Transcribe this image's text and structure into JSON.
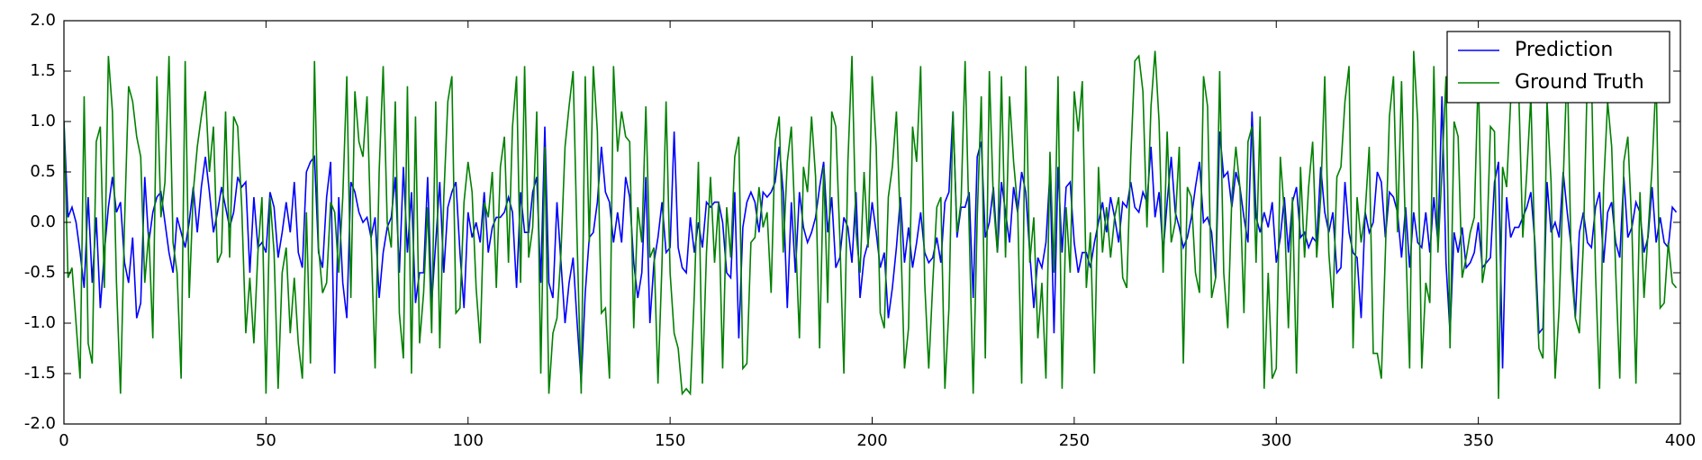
{
  "chart_data": {
    "type": "line",
    "x": [
      0,
      1,
      2,
      3,
      4,
      5,
      6,
      7,
      8,
      9,
      10,
      11,
      12,
      13,
      14,
      15,
      16,
      17,
      18,
      19,
      20,
      21,
      22,
      23,
      24,
      25,
      26,
      27,
      28,
      29,
      30,
      31,
      32,
      33,
      34,
      35,
      36,
      37,
      38,
      39,
      40,
      41,
      42,
      43,
      44,
      45,
      46,
      47,
      48,
      49,
      50,
      51,
      52,
      53,
      54,
      55,
      56,
      57,
      58,
      59,
      60,
      61,
      62,
      63,
      64,
      65,
      66,
      67,
      68,
      69,
      70,
      71,
      72,
      73,
      74,
      75,
      76,
      77,
      78,
      79,
      80,
      81,
      82,
      83,
      84,
      85,
      86,
      87,
      88,
      89,
      90,
      91,
      92,
      93,
      94,
      95,
      96,
      97,
      98,
      99,
      100,
      101,
      102,
      103,
      104,
      105,
      106,
      107,
      108,
      109,
      110,
      111,
      112,
      113,
      114,
      115,
      116,
      117,
      118,
      119,
      120,
      121,
      122,
      123,
      124,
      125,
      126,
      127,
      128,
      129,
      130,
      131,
      132,
      133,
      134,
      135,
      136,
      137,
      138,
      139,
      140,
      141,
      142,
      143,
      144,
      145,
      146,
      147,
      148,
      149,
      150,
      151,
      152,
      153,
      154,
      155,
      156,
      157,
      158,
      159,
      160,
      161,
      162,
      163,
      164,
      165,
      166,
      167,
      168,
      169,
      170,
      171,
      172,
      173,
      174,
      175,
      176,
      177,
      178,
      179,
      180,
      181,
      182,
      183,
      184,
      185,
      186,
      187,
      188,
      189,
      190,
      191,
      192,
      193,
      194,
      195,
      196,
      197,
      198,
      199,
      200,
      201,
      202,
      203,
      204,
      205,
      206,
      207,
      208,
      209,
      210,
      211,
      212,
      213,
      214,
      215,
      216,
      217,
      218,
      219,
      220,
      221,
      222,
      223,
      224,
      225,
      226,
      227,
      228,
      229,
      230,
      231,
      232,
      233,
      234,
      235,
      236,
      237,
      238,
      239,
      240,
      241,
      242,
      243,
      244,
      245,
      246,
      247,
      248,
      249,
      250,
      251,
      252,
      253,
      254,
      255,
      256,
      257,
      258,
      259,
      260,
      261,
      262,
      263,
      264,
      265,
      266,
      267,
      268,
      269,
      270,
      271,
      272,
      273,
      274,
      275,
      276,
      277,
      278,
      279,
      280,
      281,
      282,
      283,
      284,
      285,
      286,
      287,
      288,
      289,
      290,
      291,
      292,
      293,
      294,
      295,
      296,
      297,
      298,
      299,
      300,
      301,
      302,
      303,
      304,
      305,
      306,
      307,
      308,
      309,
      310,
      311,
      312,
      313,
      314,
      315,
      316,
      317,
      318,
      319,
      320,
      321,
      322,
      323,
      324,
      325,
      326,
      327,
      328,
      329,
      330,
      331,
      332,
      333,
      334,
      335,
      336,
      337,
      338,
      339,
      340,
      341,
      342,
      343,
      344,
      345,
      346,
      347,
      348,
      349,
      350,
      351,
      352,
      353,
      354,
      355,
      356,
      357,
      358,
      359,
      360,
      361,
      362,
      363,
      364,
      365,
      366,
      367,
      368,
      369,
      370,
      371,
      372,
      373,
      374,
      375,
      376,
      377,
      378,
      379,
      380,
      381,
      382,
      383,
      384,
      385,
      386,
      387,
      388,
      389,
      390,
      391,
      392,
      393,
      394,
      395,
      396,
      397,
      398,
      399
    ],
    "series": [
      {
        "name": "Prediction",
        "color": "#0000ff",
        "values": [
          1.0,
          0.05,
          0.15,
          0.0,
          -0.3,
          -0.65,
          0.25,
          -0.6,
          0.05,
          -0.85,
          -0.3,
          0.15,
          0.45,
          0.1,
          0.2,
          -0.4,
          -0.6,
          -0.15,
          -0.95,
          -0.8,
          0.45,
          -0.2,
          0.1,
          0.25,
          0.3,
          0.0,
          -0.3,
          -0.5,
          0.05,
          -0.1,
          -0.25,
          0.0,
          0.35,
          -0.1,
          0.35,
          0.65,
          0.3,
          -0.1,
          0.1,
          0.35,
          0.15,
          -0.05,
          0.1,
          0.45,
          0.35,
          0.4,
          -0.5,
          0.25,
          -0.25,
          -0.2,
          -0.3,
          0.3,
          0.15,
          -0.35,
          -0.1,
          0.2,
          -0.1,
          0.4,
          -0.3,
          -0.45,
          0.5,
          0.6,
          0.65,
          -0.3,
          -0.45,
          0.25,
          0.6,
          -1.5,
          0.25,
          -0.6,
          -0.95,
          0.4,
          0.3,
          0.1,
          0.0,
          0.05,
          -0.15,
          0.05,
          -0.75,
          -0.3,
          -0.05,
          0.05,
          0.45,
          -0.5,
          0.55,
          -0.3,
          0.3,
          -0.8,
          -0.5,
          -0.5,
          0.45,
          -0.8,
          -0.2,
          0.4,
          -0.5,
          0.15,
          0.3,
          0.4,
          -0.3,
          -0.85,
          0.1,
          -0.15,
          0.0,
          -0.2,
          0.3,
          -0.3,
          -0.05,
          0.05,
          0.05,
          0.1,
          0.25,
          0.1,
          -0.65,
          0.3,
          -0.1,
          -0.1,
          0.3,
          0.45,
          -0.6,
          0.95,
          -0.6,
          -0.75,
          0.2,
          -0.4,
          -1.0,
          -0.6,
          -0.35,
          -1.0,
          -1.6,
          -0.7,
          -0.15,
          -0.1,
          0.2,
          0.75,
          0.3,
          0.2,
          -0.2,
          0.1,
          -0.2,
          0.45,
          0.25,
          -0.4,
          -0.75,
          -0.5,
          0.45,
          -1.0,
          -0.4,
          -0.15,
          0.2,
          -0.3,
          -0.25,
          0.9,
          -0.25,
          -0.45,
          -0.5,
          0.05,
          -0.3,
          0.0,
          -0.25,
          0.2,
          0.15,
          0.2,
          0.2,
          0.0,
          -0.5,
          -0.55,
          0.3,
          -1.15,
          -0.05,
          0.2,
          0.3,
          0.2,
          -0.1,
          0.3,
          0.25,
          0.3,
          0.4,
          0.75,
          0.3,
          -0.85,
          0.2,
          -0.5,
          0.3,
          -0.05,
          -0.2,
          -0.1,
          0.05,
          0.35,
          0.6,
          -0.1,
          0.25,
          -0.45,
          -0.35,
          0.05,
          -0.05,
          -0.4,
          0.3,
          -0.75,
          -0.35,
          -0.2,
          0.2,
          -0.1,
          -0.45,
          -0.3,
          -0.95,
          -0.65,
          -0.25,
          0.25,
          -0.4,
          -0.05,
          -0.45,
          -0.2,
          0.1,
          -0.3,
          -0.4,
          -0.35,
          -0.15,
          -0.4,
          0.2,
          0.3,
          1.1,
          -0.15,
          0.15,
          0.15,
          0.3,
          -0.75,
          0.65,
          0.8,
          -0.15,
          0.0,
          0.35,
          -0.3,
          0.4,
          0.1,
          -0.2,
          0.35,
          0.1,
          0.5,
          0.3,
          -0.3,
          -0.85,
          -0.35,
          -0.45,
          -0.2,
          0.5,
          -1.1,
          0.55,
          -0.3,
          0.35,
          0.4,
          -0.2,
          -0.5,
          -0.3,
          -0.3,
          -0.45,
          -0.2,
          0.0,
          0.2,
          -0.1,
          0.25,
          0.05,
          -0.2,
          0.2,
          0.15,
          0.4,
          0.15,
          0.1,
          0.3,
          0.2,
          0.75,
          0.05,
          0.3,
          -0.3,
          0.2,
          0.65,
          0.1,
          -0.05,
          -0.25,
          -0.15,
          0.05,
          0.35,
          0.6,
          0.0,
          0.05,
          -0.1,
          -0.55,
          0.9,
          0.45,
          0.5,
          0.15,
          0.5,
          0.35,
          0.05,
          -0.2,
          1.1,
          0.05,
          -0.1,
          0.1,
          -0.05,
          0.2,
          -0.4,
          -0.15,
          0.25,
          -0.3,
          0.2,
          0.35,
          -0.15,
          -0.1,
          -0.25,
          -0.15,
          -0.2,
          0.55,
          0.1,
          -0.1,
          0.1,
          -0.5,
          -0.45,
          0.4,
          -0.1,
          -0.3,
          -0.35,
          -0.95,
          0.1,
          -0.1,
          0.0,
          0.5,
          0.4,
          -0.15,
          0.3,
          0.25,
          0.1,
          -0.35,
          0.15,
          -0.45,
          0.1,
          -0.2,
          -0.25,
          0.1,
          -0.3,
          0.25,
          -0.2,
          1.25,
          -0.4,
          -1.1,
          -0.1,
          -0.3,
          -0.05,
          -0.45,
          -0.4,
          -0.3,
          0.0,
          -0.45,
          -0.4,
          -0.35,
          0.4,
          0.6,
          -1.45,
          0.25,
          -0.15,
          -0.05,
          -0.05,
          0.05,
          0.15,
          0.3,
          -0.2,
          -1.1,
          -1.05,
          0.4,
          -0.1,
          0.0,
          -0.15,
          0.5,
          0.1,
          -0.25,
          -0.95,
          -0.1,
          0.1,
          -0.2,
          -0.25,
          0.15,
          0.3,
          -0.4,
          0.1,
          0.2,
          -0.2,
          -0.35,
          0.45,
          -0.15,
          -0.05,
          0.2,
          0.1,
          -0.3,
          -0.15,
          0.35,
          -0.2,
          0.05,
          -0.2,
          -0.25,
          0.15,
          0.1
        ]
      },
      {
        "name": "Ground Truth",
        "color": "#008000",
        "values": [
          1.0,
          -0.55,
          -0.45,
          -1.0,
          -1.55,
          1.25,
          -1.2,
          -1.4,
          0.8,
          0.95,
          -0.65,
          1.65,
          1.1,
          -0.6,
          -1.7,
          0.0,
          1.35,
          1.2,
          0.85,
          0.65,
          -0.6,
          -0.1,
          -1.15,
          1.45,
          0.05,
          0.4,
          1.65,
          -0.2,
          -0.5,
          -1.55,
          1.6,
          -0.75,
          0.3,
          0.75,
          1.05,
          1.3,
          0.5,
          0.95,
          -0.4,
          -0.3,
          1.1,
          -0.35,
          1.05,
          0.95,
          0.15,
          -1.1,
          -0.55,
          -1.2,
          -0.3,
          0.25,
          -1.7,
          0.25,
          -0.3,
          -1.65,
          -0.5,
          -0.25,
          -1.1,
          -0.55,
          -1.2,
          -1.55,
          0.1,
          -1.4,
          1.6,
          -0.25,
          -0.7,
          -0.6,
          0.2,
          0.1,
          -0.5,
          0.25,
          1.45,
          -0.75,
          1.3,
          0.8,
          0.65,
          1.25,
          -0.15,
          -1.45,
          0.5,
          1.55,
          0.0,
          -0.25,
          1.2,
          -0.9,
          -1.35,
          1.35,
          -1.5,
          1.05,
          -1.2,
          -0.7,
          0.15,
          -1.1,
          1.2,
          -1.25,
          0.25,
          1.2,
          1.45,
          -0.9,
          -0.85,
          0.2,
          0.6,
          0.3,
          -0.65,
          -1.2,
          0.2,
          0.05,
          0.5,
          -0.65,
          0.55,
          0.85,
          -0.4,
          0.95,
          1.45,
          -0.6,
          1.55,
          -0.35,
          -0.05,
          1.1,
          -1.5,
          0.75,
          -1.7,
          -1.1,
          -0.95,
          -0.3,
          0.75,
          1.15,
          1.5,
          -0.2,
          -1.7,
          1.45,
          -0.2,
          1.55,
          0.9,
          -0.9,
          -0.85,
          -1.55,
          1.55,
          0.7,
          1.1,
          0.85,
          0.8,
          -1.05,
          0.15,
          -0.2,
          1.15,
          -0.35,
          -0.25,
          -1.6,
          -0.4,
          1.2,
          -0.5,
          -1.1,
          -1.25,
          -1.7,
          -1.65,
          -1.7,
          -0.7,
          0.6,
          -1.6,
          -0.3,
          0.45,
          -0.4,
          0.2,
          -1.45,
          0.15,
          -0.35,
          0.65,
          0.85,
          -1.45,
          -1.4,
          -0.2,
          -0.15,
          0.35,
          -0.05,
          0.1,
          -0.7,
          0.8,
          1.05,
          -0.3,
          0.6,
          0.95,
          -0.1,
          -1.15,
          0.55,
          0.3,
          1.05,
          0.45,
          -1.25,
          0.55,
          -0.8,
          1.1,
          0.95,
          -0.15,
          -1.5,
          0.6,
          1.65,
          -0.1,
          -0.5,
          0.5,
          -0.25,
          1.45,
          0.75,
          -0.9,
          -1.05,
          0.25,
          0.55,
          1.1,
          -0.05,
          -1.45,
          -1.05,
          0.95,
          0.6,
          1.55,
          -0.6,
          -1.45,
          -0.6,
          0.15,
          0.25,
          -1.65,
          -0.85,
          1.1,
          -0.1,
          0.2,
          1.6,
          -0.05,
          -1.7,
          0.05,
          1.25,
          -1.35,
          1.5,
          0.2,
          -0.3,
          1.45,
          -0.35,
          1.25,
          0.6,
          0.15,
          -1.6,
          1.55,
          -0.4,
          0.05,
          -1.15,
          -0.6,
          -1.55,
          0.7,
          -0.5,
          1.45,
          -1.65,
          0.15,
          -0.5,
          1.3,
          0.9,
          1.4,
          -0.65,
          -0.1,
          -1.5,
          0.55,
          -0.3,
          0.15,
          -0.35,
          0.05,
          0.25,
          -0.55,
          -0.65,
          0.65,
          1.6,
          1.65,
          1.3,
          -0.05,
          1.15,
          1.7,
          1.0,
          -0.5,
          0.9,
          -0.2,
          0.0,
          0.75,
          -1.4,
          0.35,
          0.25,
          -0.5,
          -0.7,
          1.45,
          1.15,
          -0.75,
          -0.55,
          1.5,
          -0.5,
          -1.05,
          0.25,
          0.75,
          0.35,
          -0.9,
          0.8,
          0.95,
          -0.4,
          1.05,
          -1.65,
          -0.5,
          -1.55,
          -1.45,
          0.65,
          0.1,
          -1.05,
          0.25,
          -1.5,
          0.55,
          -0.35,
          0.35,
          0.8,
          -0.35,
          0.25,
          1.45,
          -0.3,
          -0.85,
          0.45,
          0.55,
          1.2,
          1.55,
          -1.25,
          0.25,
          -0.2,
          0.1,
          0.75,
          -1.3,
          -1.3,
          -1.55,
          -0.3,
          1.05,
          1.45,
          -0.1,
          1.4,
          -0.15,
          -1.45,
          1.7,
          1.0,
          -1.45,
          -0.6,
          -0.8,
          1.55,
          -0.3,
          0.5,
          1.45,
          -1.25,
          1.0,
          0.85,
          -0.55,
          -0.35,
          -0.1,
          0.05,
          1.5,
          -0.6,
          -0.35,
          0.95,
          0.9,
          -1.75,
          0.55,
          0.35,
          1.2,
          1.45,
          1.3,
          -0.15,
          0.5,
          1.25,
          -0.35,
          -1.25,
          -1.35,
          1.2,
          0.4,
          -1.55,
          -0.85,
          0.4,
          1.6,
          -0.45,
          -0.95,
          -1.1,
          -0.2,
          1.5,
          1.45,
          -0.5,
          -1.65,
          0.35,
          1.2,
          0.75,
          -0.5,
          -1.55,
          0.6,
          0.85,
          -0.05,
          -1.6,
          0.3,
          -0.75,
          -0.1,
          0.55,
          1.45,
          -0.85,
          -0.8,
          -0.2,
          -0.6,
          -0.65
        ]
      }
    ],
    "xlim": [
      0,
      400
    ],
    "xticks": [
      0,
      50,
      100,
      150,
      200,
      250,
      300,
      350,
      400
    ],
    "ylim": [
      -2,
      2
    ],
    "yticks": [
      {
        "value": -2,
        "label": "-2.0"
      },
      -1.5,
      {
        "value": -1,
        "label": "-1.0"
      },
      -0.5,
      {
        "value": 0,
        "label": "0.0"
      },
      0.5,
      {
        "value": 1,
        "label": "1.0"
      },
      1.5,
      {
        "value": 2,
        "label": "2.0"
      }
    ],
    "grid": false,
    "legend": "upper right"
  }
}
